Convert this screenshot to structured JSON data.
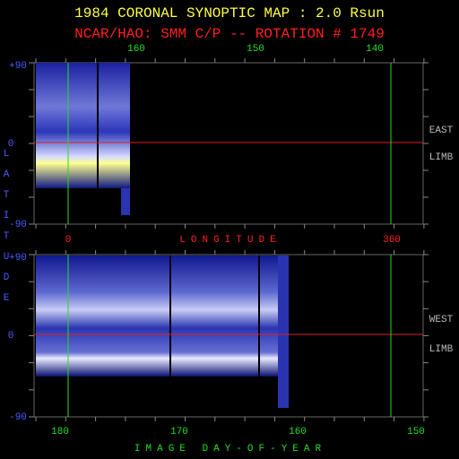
{
  "header": {
    "title": "1984 CORONAL SYNOPTIC MAP : 2.0 Rsun",
    "subtitle": "NCAR/HAO: SMM C/P -- ROTATION # 1749"
  },
  "top_panel": {
    "top_ticks": [
      "160",
      "150",
      "140"
    ],
    "lat_ticks": [
      "+90",
      "0",
      "-90"
    ],
    "side_label": [
      "EAST",
      "LIMB"
    ]
  },
  "longitude": {
    "ticks": [
      "0",
      "360"
    ],
    "label": "LONGITUDE"
  },
  "bottom_panel": {
    "lat_ticks": [
      "+90",
      "0",
      "-90"
    ],
    "side_label": [
      "WEST",
      "LIMB"
    ],
    "day_ticks": [
      "180",
      "170",
      "160",
      "150"
    ],
    "axis_label": "IMAGE DAY-OF-YEAR"
  },
  "latitude_label": "LATITUDE"
}
